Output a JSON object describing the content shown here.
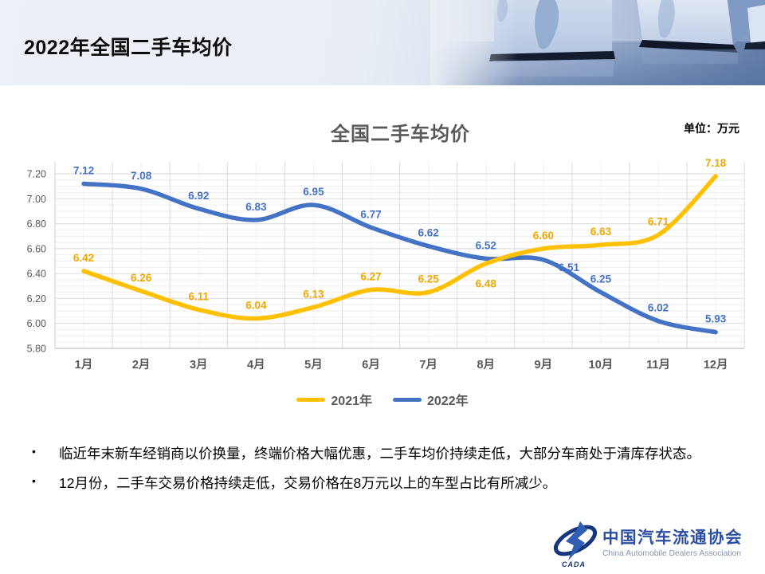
{
  "page": {
    "title": "2022年全国二手车均价"
  },
  "chart": {
    "title": "全国二手车均价",
    "unit_label": "单位：万元"
  },
  "chart_data": {
    "type": "line",
    "title": "全国二手车均价",
    "unit": "万元",
    "categories": [
      "1月",
      "2月",
      "3月",
      "4月",
      "5月",
      "6月",
      "7月",
      "8月",
      "9月",
      "10月",
      "11月",
      "12月"
    ],
    "series": [
      {
        "name": "2021年",
        "color": "#FFC000",
        "label_color": "#F0A800",
        "values": [
          6.42,
          6.26,
          6.11,
          6.04,
          6.13,
          6.27,
          6.25,
          6.48,
          6.6,
          6.63,
          6.71,
          7.18
        ],
        "label_offsets": {
          "7": [
            0,
            30
          ]
        }
      },
      {
        "name": "2022年",
        "color": "#4472C4",
        "label_color": "#4472C4",
        "values": [
          7.12,
          7.08,
          6.92,
          6.83,
          6.95,
          6.77,
          6.62,
          6.52,
          6.51,
          6.25,
          6.02,
          5.93
        ],
        "label_offsets": {
          "8": [
            32,
            14
          ]
        }
      }
    ],
    "ylim": [
      5.8,
      7.2
    ],
    "ytick_step": 0.2,
    "yminor_step": 0.05,
    "value_decimals": 2,
    "grid": true,
    "smoothed": true,
    "legend_position": "bottom"
  },
  "notes": {
    "bullet_char": "•",
    "items": [
      "临近年末新车经销商以价换量，终端价格大幅优惠，二手车均价持续走低，大部分车商处于清库存状态。",
      "12月份，二手车交易价格持续走低，交易价格在8万元以上的车型占比有所减少。"
    ]
  },
  "footer_logo": {
    "badge": "CADA",
    "cn": "中国汽车流通协会",
    "en": "China Automobile Dealers Association"
  }
}
